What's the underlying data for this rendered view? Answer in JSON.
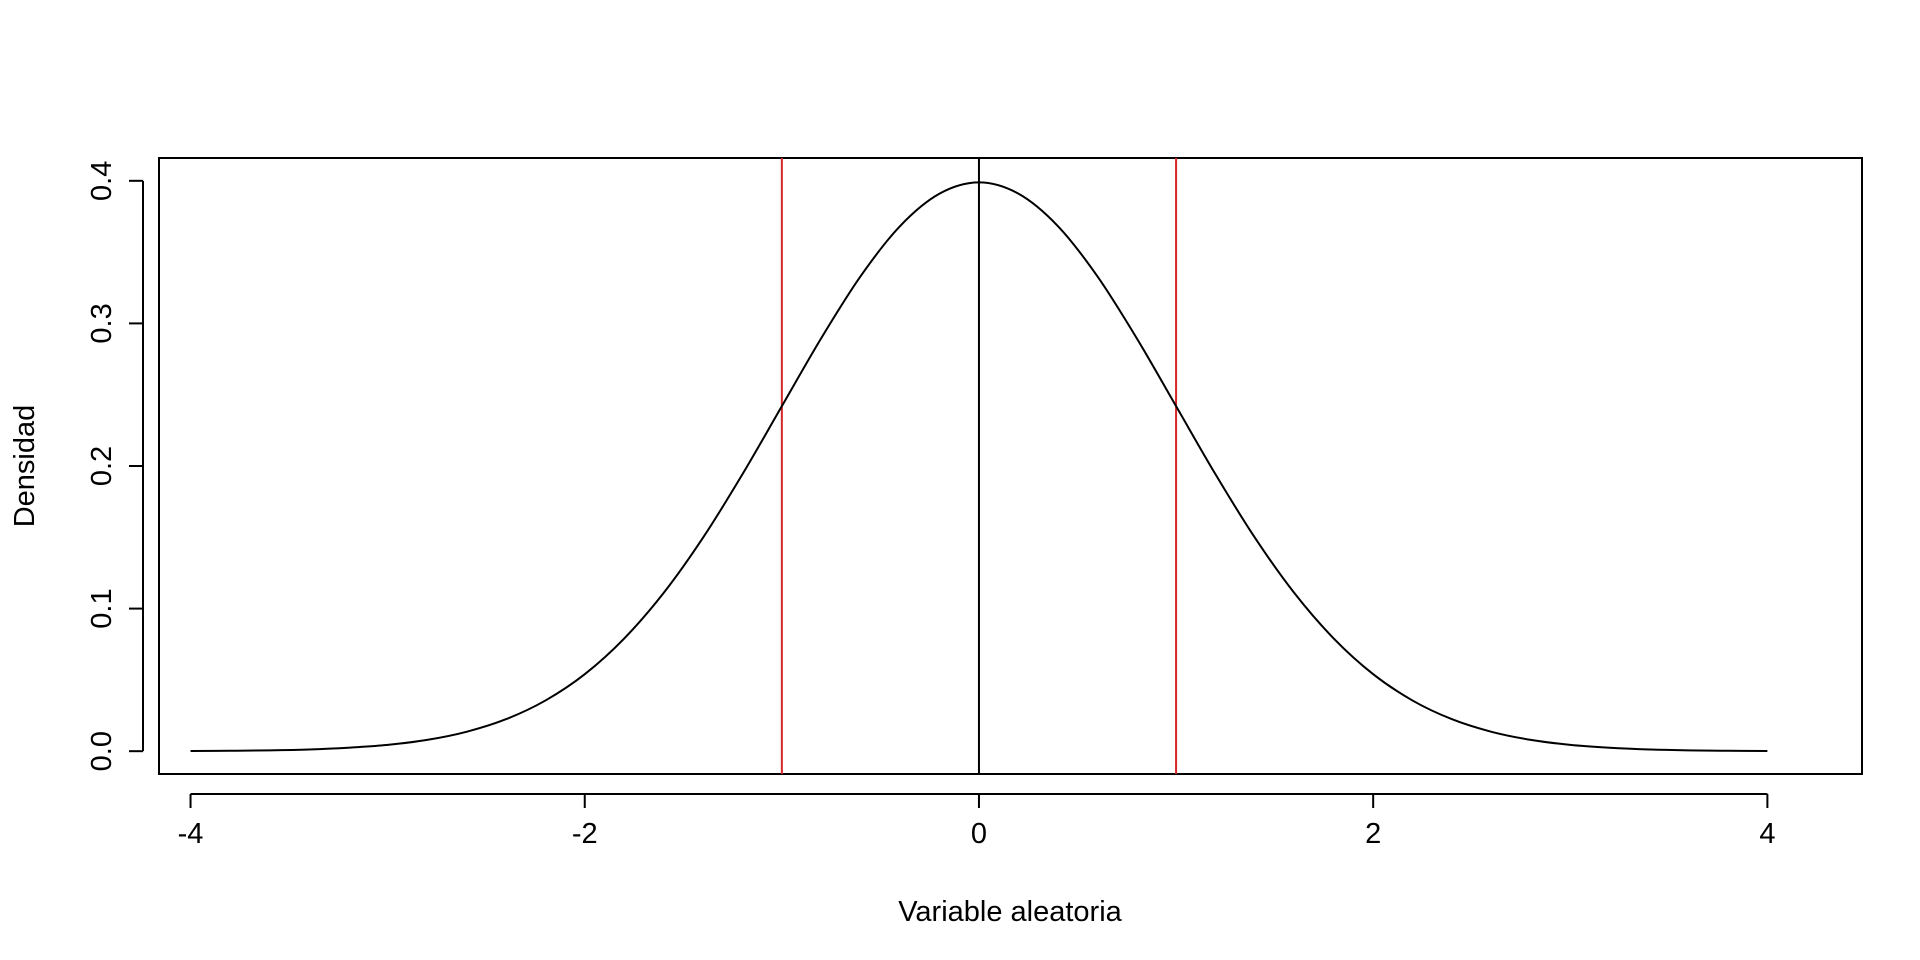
{
  "chart_data": {
    "type": "line",
    "title": "",
    "xlabel": "Variable aleatoria",
    "ylabel": "Densidad",
    "xlim": [
      -4.16,
      4.48
    ],
    "ylim": [
      -0.016,
      0.416
    ],
    "x_ticks": [
      -4,
      -2,
      0,
      2,
      4
    ],
    "x_tick_labels": [
      "-4",
      "-2",
      "0",
      "2",
      "4"
    ],
    "y_ticks": [
      0.0,
      0.1,
      0.2,
      0.3,
      0.4
    ],
    "y_tick_labels": [
      "0.0",
      "0.1",
      "0.2",
      "0.3",
      "0.4"
    ],
    "grid": false,
    "legend": "none",
    "series": [
      {
        "color": "#000000",
        "x": [
          -4.0,
          -3.8,
          -3.6,
          -3.4,
          -3.2,
          -3.0,
          -2.8,
          -2.6,
          -2.4,
          -2.2,
          -2.0,
          -1.8,
          -1.6,
          -1.4,
          -1.2,
          -1.0,
          -0.8,
          -0.6,
          -0.4,
          -0.2,
          0.0,
          0.2,
          0.4,
          0.6,
          0.8,
          1.0,
          1.2,
          1.4,
          1.6,
          1.8,
          2.0,
          2.2,
          2.4,
          2.6,
          2.8,
          3.0,
          3.2,
          3.4,
          3.6,
          3.8,
          4.0
        ],
        "y": [
          0.0001,
          0.0003,
          0.0006,
          0.0012,
          0.0024,
          0.0044,
          0.0079,
          0.0136,
          0.0224,
          0.0355,
          0.054,
          0.079,
          0.1109,
          0.1497,
          0.1942,
          0.242,
          0.2897,
          0.3332,
          0.3683,
          0.391,
          0.3989,
          0.391,
          0.3683,
          0.3332,
          0.2897,
          0.242,
          0.1942,
          0.1497,
          0.1109,
          0.079,
          0.054,
          0.0355,
          0.0224,
          0.0136,
          0.0079,
          0.0044,
          0.0024,
          0.0012,
          0.0006,
          0.0003,
          0.0001
        ]
      }
    ],
    "vertical_lines": [
      {
        "x": -1,
        "color": "#d62728"
      },
      {
        "x": 0,
        "color": "#000000"
      },
      {
        "x": 1,
        "color": "#d62728"
      }
    ]
  }
}
